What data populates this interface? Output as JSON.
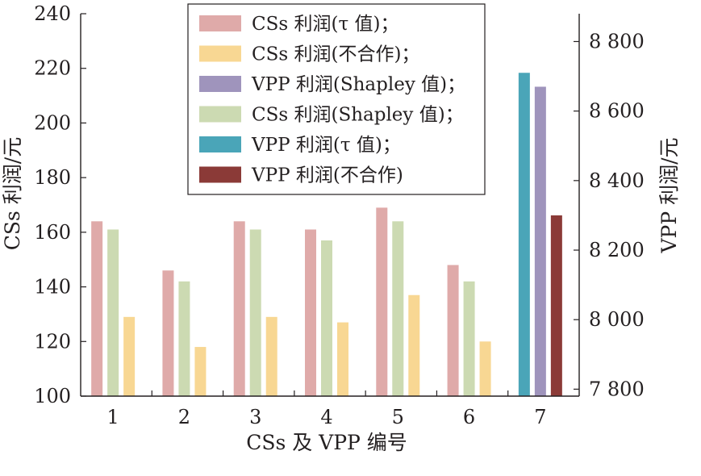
{
  "chart_data": {
    "type": "bar",
    "categories": [
      "1",
      "2",
      "3",
      "4",
      "5",
      "6",
      "7"
    ],
    "xlabel": "CSs 及 VPP 编号",
    "ylabel_left": "CSs 利润/元",
    "ylabel_right": "VPP 利润/元",
    "y_left": {
      "min": 100,
      "max": 240,
      "ticks": [
        100,
        120,
        140,
        160,
        180,
        200,
        220,
        240
      ],
      "tick_labels": [
        "100",
        "120",
        "140",
        "160",
        "180",
        "200",
        "220",
        "240"
      ]
    },
    "y_right": {
      "min": 7780,
      "max": 8880,
      "ticks": [
        7800,
        8000,
        8200,
        8400,
        8600,
        8800
      ],
      "tick_labels": [
        "7 800",
        "8 000",
        "8 200",
        "8 400",
        "8 600",
        "8 800"
      ]
    },
    "grid": false,
    "legend_position": "top-center",
    "legend": [
      {
        "label": "CSs 利润(τ 值)；",
        "color": "#dfaaa9"
      },
      {
        "label": "CSs 利润(不合作)；",
        "color": "#f8d793"
      },
      {
        "label": "VPP 利润(Shapley 值)；",
        "color": "#9f94bc"
      },
      {
        "label": "CSs 利润(Shapley 值)；",
        "color": "#ccdab2"
      },
      {
        "label": "VPP 利润(τ 值)；",
        "color": "#4aa5b8"
      },
      {
        "label": "VPP 利润(不合作)",
        "color": "#8b3a37"
      }
    ],
    "series": [
      {
        "name": "CSs 利润(τ 值)",
        "axis": "left",
        "color": "#dfaaa9",
        "values": [
          164,
          146,
          164,
          161,
          169,
          148,
          null
        ]
      },
      {
        "name": "CSs 利润(Shapley 值)",
        "axis": "left",
        "color": "#ccdab2",
        "values": [
          161,
          142,
          161,
          157,
          164,
          142,
          null
        ]
      },
      {
        "name": "CSs 利润(不合作)",
        "axis": "left",
        "color": "#f8d793",
        "values": [
          129,
          118,
          129,
          127,
          137,
          120,
          null
        ]
      },
      {
        "name": "VPP 利润(τ 值)",
        "axis": "right",
        "color": "#4aa5b8",
        "values": [
          null,
          null,
          null,
          null,
          null,
          null,
          8710
        ]
      },
      {
        "name": "VPP 利润(Shapley 值)",
        "axis": "right",
        "color": "#9f94bc",
        "values": [
          null,
          null,
          null,
          null,
          null,
          null,
          8670
        ]
      },
      {
        "name": "VPP 利润(不合作)",
        "axis": "right",
        "color": "#8b3a37",
        "values": [
          null,
          null,
          null,
          null,
          null,
          null,
          8300
        ]
      }
    ]
  }
}
